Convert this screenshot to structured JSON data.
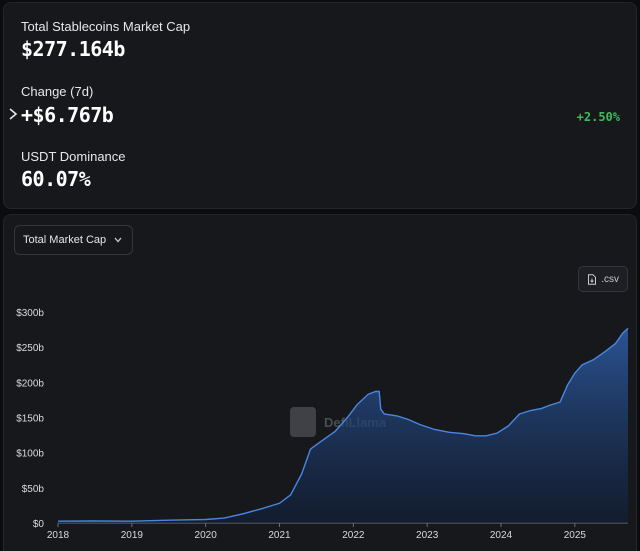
{
  "stats": {
    "market_cap_label": "Total Stablecoins Market Cap",
    "market_cap_value": "$277.164b",
    "change_label": "Change (7d)",
    "change_value": "+$6.767b",
    "change_percent": "+2.50%",
    "dominance_label": "USDT Dominance",
    "dominance_value": "60.07%"
  },
  "chart_controls": {
    "metric_select_value": "Total Market Cap",
    "csv_label": ".csv"
  },
  "watermark": "DefiLlama",
  "colors": {
    "accent_line": "#4a86e0",
    "positive": "#3dbb5a",
    "panel": "#17181c"
  },
  "chart_data": {
    "type": "area",
    "xlabel": "",
    "ylabel": "",
    "x_ticks": [
      "2018",
      "2019",
      "2020",
      "2021",
      "2022",
      "2023",
      "2024",
      "2025"
    ],
    "y_ticks": [
      "$0",
      "$50b",
      "$100b",
      "$150b",
      "$200b",
      "$250b",
      "$300b"
    ],
    "ylim": [
      0,
      300
    ],
    "xlim": [
      2018.0,
      2025.72
    ],
    "grid": false,
    "series": [
      {
        "values": [
          [
            2018.0,
            2.5
          ],
          [
            2018.5,
            2.8
          ],
          [
            2019.0,
            2.6
          ],
          [
            2019.5,
            4
          ],
          [
            2020.0,
            5
          ],
          [
            2020.25,
            7
          ],
          [
            2020.5,
            13
          ],
          [
            2020.75,
            20
          ],
          [
            2021.0,
            28
          ],
          [
            2021.15,
            40
          ],
          [
            2021.3,
            70
          ],
          [
            2021.42,
            105
          ],
          [
            2021.55,
            115
          ],
          [
            2021.75,
            130
          ],
          [
            2021.92,
            150
          ],
          [
            2022.05,
            168
          ],
          [
            2022.2,
            183
          ],
          [
            2022.3,
            187
          ],
          [
            2022.35,
            187
          ],
          [
            2022.37,
            162
          ],
          [
            2022.42,
            155
          ],
          [
            2022.6,
            152
          ],
          [
            2022.75,
            147
          ],
          [
            2022.9,
            140
          ],
          [
            2023.1,
            133
          ],
          [
            2023.3,
            129
          ],
          [
            2023.5,
            127
          ],
          [
            2023.65,
            124
          ],
          [
            2023.8,
            124
          ],
          [
            2023.95,
            128
          ],
          [
            2024.1,
            138
          ],
          [
            2024.25,
            155
          ],
          [
            2024.4,
            160
          ],
          [
            2024.55,
            163
          ],
          [
            2024.65,
            167
          ],
          [
            2024.8,
            172
          ],
          [
            2024.9,
            196
          ],
          [
            2025.0,
            213
          ],
          [
            2025.1,
            225
          ],
          [
            2025.25,
            232
          ],
          [
            2025.4,
            243
          ],
          [
            2025.55,
            255
          ],
          [
            2025.65,
            270
          ],
          [
            2025.72,
            277
          ]
        ]
      }
    ]
  }
}
